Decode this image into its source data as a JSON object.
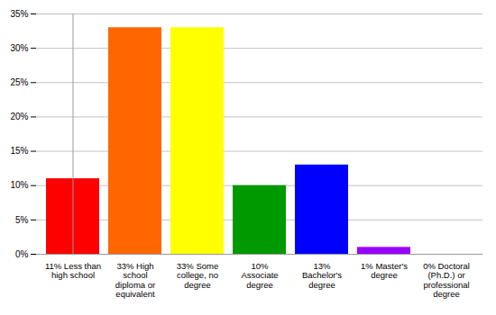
{
  "chart_data": {
    "type": "bar",
    "categories": [
      "11% Less than high school",
      "33% High school diploma or equivalent",
      "33% Some college, no degree",
      "10% Associate degree",
      "13% Bachelor's degree",
      "1% Master's degree",
      "0% Doctoral (Ph.D.) or professional degree"
    ],
    "values": [
      11,
      33,
      33,
      10,
      13,
      1,
      0
    ],
    "colors": [
      "#ff0000",
      "#ff6600",
      "#ffff00",
      "#009900",
      "#0000ff",
      "#9900ff",
      "#ff00ff"
    ],
    "ylim": [
      0,
      35
    ],
    "yticks": [
      {
        "value": 0,
        "label": "0%"
      },
      {
        "value": 5,
        "label": "5%"
      },
      {
        "value": 10,
        "label": "10%"
      },
      {
        "value": 15,
        "label": "15%"
      },
      {
        "value": 20,
        "label": "20%"
      },
      {
        "value": 25,
        "label": "25%"
      },
      {
        "value": 30,
        "label": "30%"
      },
      {
        "value": 35,
        "label": "35%"
      }
    ],
    "grid": true
  }
}
